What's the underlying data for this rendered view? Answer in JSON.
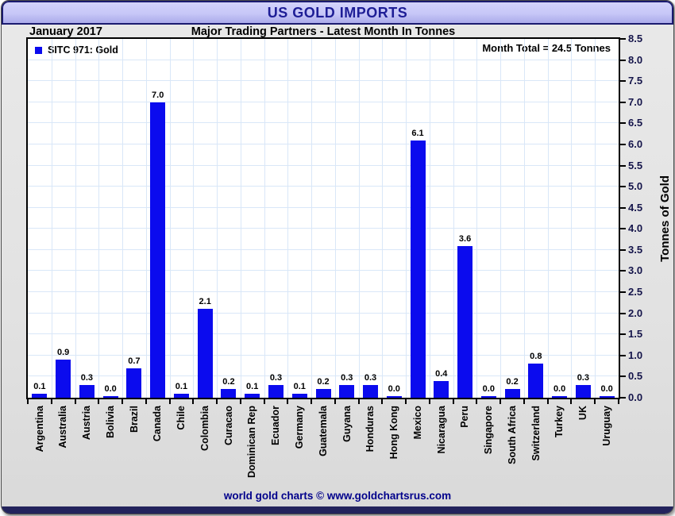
{
  "window": {
    "title": "US GOLD IMPORTS",
    "period_label": "January 2017",
    "subtitle": "Major Trading Partners - Latest Month In Tonnes",
    "footer": "world gold charts © www.goldchartsrus.com"
  },
  "chart_data": {
    "type": "bar",
    "title": "US GOLD IMPORTS",
    "subtitle": "Major Trading Partners - Latest Month In Tonnes",
    "period": "January 2017",
    "legend": {
      "label": "SITC 971: Gold",
      "color": "#0b0bee"
    },
    "legend_position": "top-left",
    "annotation": "Month Total = 24.5 Tonnes",
    "ylabel": "Tonnes of Gold",
    "ylim": [
      0,
      8.5
    ],
    "ytick_step": 0.5,
    "ytick_labels": [
      "0.0",
      "0.5",
      "1.0",
      "1.5",
      "2.0",
      "2.5",
      "3.0",
      "3.5",
      "4.0",
      "4.5",
      "5.0",
      "5.5",
      "6.0",
      "6.5",
      "7.0",
      "7.5",
      "8.0",
      "8.5"
    ],
    "grid": true,
    "bar_color": "#0b0bee",
    "categories": [
      "Argentina",
      "Australia",
      "Austria",
      "Bolivia",
      "Brazil",
      "Canada",
      "Chile",
      "Colombia",
      "Curacao",
      "Dominican Rep",
      "Ecuador",
      "Germany",
      "Guatemala",
      "Guyana",
      "Honduras",
      "Hong Kong",
      "Mexico",
      "Nicaragua",
      "Peru",
      "Singapore",
      "South Africa",
      "Switzerland",
      "Turkey",
      "UK",
      "Uruguay"
    ],
    "values": [
      0.1,
      0.9,
      0.3,
      0.0,
      0.7,
      7.0,
      0.1,
      2.1,
      0.2,
      0.1,
      0.3,
      0.1,
      0.2,
      0.3,
      0.3,
      0.0,
      6.1,
      0.4,
      3.6,
      0.0,
      0.2,
      0.8,
      0.0,
      0.3,
      0.0
    ]
  },
  "colors": {
    "bar": "#0b0bee",
    "accent_navy": "#1b1b70",
    "title_text": "#1e1e96",
    "footer_text": "#00008b",
    "grid": "#d9e7f8",
    "plot_bg": "#ffffff"
  }
}
